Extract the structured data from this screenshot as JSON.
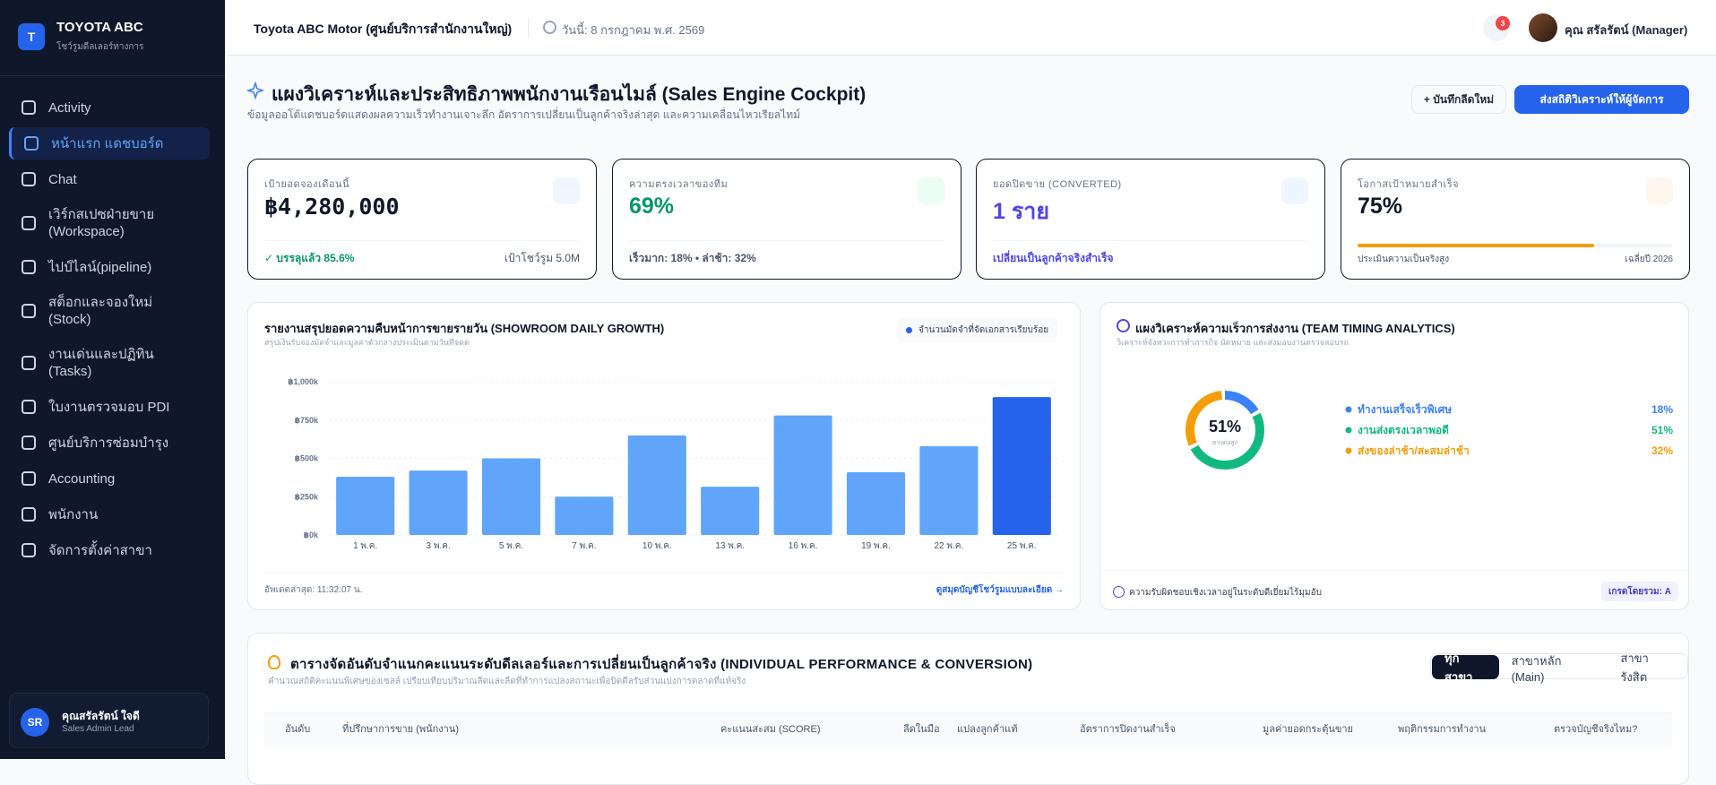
{
  "sidebar": {
    "logo": "T",
    "brand": "TOYOTA ABC",
    "brand_sub": "โชว์รูมดีลเลอร์ทางการ",
    "nav": [
      "Activity",
      "หน้าแรก แดชบอร์ด",
      "Chat",
      "เวิร์กสเปซฝ่ายขาย (Workspace)",
      "ไปป์ไลน์(pipeline)",
      "สต็อกและจองใหม่ (Stock)",
      "งานเด่นและปฏิทิน (Tasks)",
      "ใบงานตรวจมอบ PDI",
      "ศูนย์บริการซ่อมบำรุง",
      "Accounting",
      "พนักงาน",
      "จัดการตั้งค่าสาขา"
    ],
    "nav_active": 1,
    "user": {
      "initials": "SR",
      "name": "คุณสรัลรัตน์ ใจดี",
      "role": "Sales Admin Lead"
    }
  },
  "header": {
    "company": "Toyota ABC Motor (ศูนย์บริการสำนักงานใหญ่)",
    "date": "วันนี้: 8 กรกฎาคม พ.ศ. 2569",
    "notifications": "3",
    "user": "คุณ สรัลรัตน์ (Manager)"
  },
  "page": {
    "title": "แผงวิเคราะห์และประสิทธิภาพพนักงานเรือนไมล์ (Sales Engine Cockpit)",
    "subtitle": "ข้อมูลออโต้แดชบอร์ดแสดงผลความเร็วทำงานเจาะลึก อัตราการเปลี่ยนเป็นลูกค้าจริงล่าสุด และความเคลื่อนไหวเรียลไทม์",
    "button_new": "+ บันทึกลีดใหม่",
    "button_send": "ส่งสถิติวิเคราะห์ให้ผู้จัดการ"
  },
  "kpis": [
    {
      "label": "เป้ายอดจองเดือนนี้",
      "value": "฿4,280,000",
      "foot_left": "✓ บรรลุแล้ว 85.6%",
      "foot_right": "เป้าโชว์รูม 5.0M"
    },
    {
      "label": "ความตรงเวลาของทีม",
      "value": "69%",
      "foot_left": "เร็วมาก: 18% • ล่าช้า: 32%"
    },
    {
      "label": "ยอดปิดขาย (CONVERTED)",
      "value": "1 ราย",
      "foot_left": "เปลี่ยนเป็นลูกค้าจริงสำเร็จ"
    },
    {
      "label": "โอกาสเป้าหมายสำเร็จ",
      "value": "75%",
      "progress": 75,
      "foot_left": "ประเมินความเป็นจริงสูง",
      "foot_right": "เฉลี่ยปี 2026"
    }
  ],
  "chart_data": [
    {
      "type": "bar",
      "title": "รายงานสรุปยอดความคืบหน้าการขายรายวัน (SHOWROOM DAILY GROWTH)",
      "subtitle": "สรุปเงินรับจองมัดจำและมูลค่าตัวกลางประเมินตามวันที่จดต",
      "legend": "จำนวนมัดจำที่จัดเอกสารเรียบร้อย",
      "categories": [
        "1 พ.ค.",
        "3 พ.ค.",
        "5 พ.ค.",
        "7 พ.ค.",
        "10 พ.ค.",
        "13 พ.ค.",
        "16 พ.ค.",
        "19 พ.ค.",
        "22 พ.ค.",
        "25 พ.ค."
      ],
      "values": [
        380000,
        420000,
        500000,
        250000,
        650000,
        315000,
        780000,
        410000,
        580000,
        900000
      ],
      "colors": [
        "#60a5fa",
        "#60a5fa",
        "#60a5fa",
        "#60a5fa",
        "#60a5fa",
        "#60a5fa",
        "#60a5fa",
        "#60a5fa",
        "#60a5fa",
        "#2563eb"
      ],
      "ylim": [
        0,
        1000000
      ],
      "yticks": [
        {
          "value": 0,
          "label": "฿0k"
        },
        {
          "value": 250000,
          "label": "฿250k"
        },
        {
          "value": 500000,
          "label": "฿500k"
        },
        {
          "value": 750000,
          "label": "฿750k"
        },
        {
          "value": 1000000,
          "label": "฿1,000k"
        }
      ],
      "grid": true,
      "updated": "อัพเดตล่าสุด: 11:32:07 น.",
      "link": "ดูสมุดบัญชีโชว์รูมแบบละเอียด →"
    },
    {
      "type": "pie",
      "title": "แผงวิเคราะห์ความเร็วการส่งงาน (TEAM TIMING ANALYTICS)",
      "subtitle": "วิเคราะห์จังหวะการทำภารกิจ นัดหมาย และส่งมอบงานตรวจสอบรถ",
      "center_label": "51%",
      "center_sub": "ตรงต่อสูง",
      "categories": [
        "ทำงานเสร็จเร็วพิเศษ",
        "งานส่งตรงเวลาพอดี",
        "ส่งของล่าช้า/สะสมล่าช้า"
      ],
      "values": [
        18,
        51,
        32
      ],
      "value_labels": [
        "18%",
        "51%",
        "32%"
      ],
      "colors": [
        "#3b82f6",
        "#10b981",
        "#f59e0b"
      ],
      "footer": "ความรับผิดชอบเชิงเวลาอยู่ในระดับดีเยี่ยมไร้มุมอับ",
      "grade": "เกรดโดยรวม: A"
    }
  ],
  "table": {
    "title": "ตารางจัดอันดับจำแนกคะแนนระดับดีลเลอร์และการเปลี่ยนเป็นลูกค้าจริง (INDIVIDUAL PERFORMANCE & CONVERSION)",
    "subtitle": "คำนวณสถิติคะแนนพิเศษของเซลล์ เปรียบเทียบปริมาณลีดและลีดที่ทำการแปลงสถานะเพื่อปิดดีลรับส่วนแบ่งการตลาดที่แท้จริง",
    "tabs": [
      "ทุกสาขา",
      "สาขาหลัก (Main)",
      "สาขารังสิต"
    ],
    "active_tab": 0,
    "columns": [
      "อันดับ",
      "ที่ปรึกษาการขาย (พนักงาน)",
      "คะแนนสะสม (SCORE)",
      "ลีดในมือ",
      "แปลงลูกค้าแท้",
      "อัตราการปิดงานสำเร็จ",
      "มูลค่ายอดกระตุ้นขาย",
      "พฤติกรรมการทำงาน",
      "ตรวจบัญชีจริงไหม?"
    ]
  }
}
